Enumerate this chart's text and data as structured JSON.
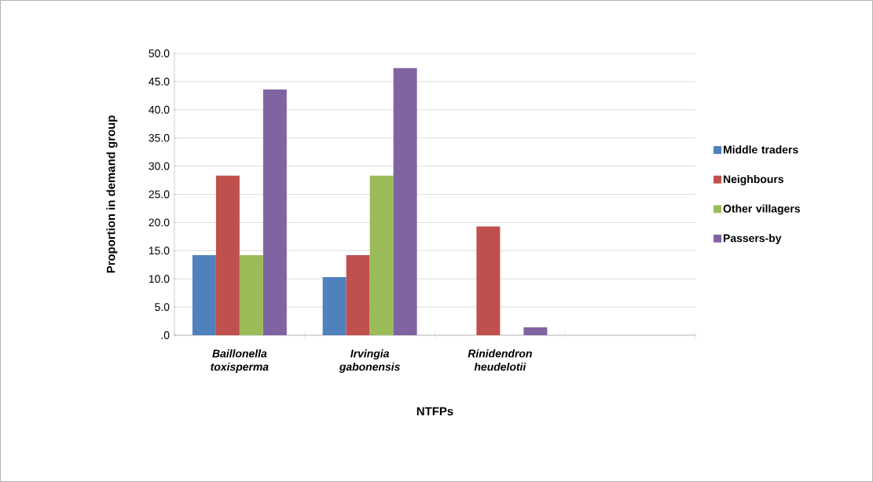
{
  "chart_data": {
    "type": "bar",
    "xlabel": "NTFPs",
    "ylabel": "Proportion in demand group",
    "categories": [
      "Baillonella toxisperma",
      "Irvingia gabonensis",
      "Rinidendron heudelotii",
      null
    ],
    "series": [
      {
        "name": "Middle traders",
        "color": "#4f81bd",
        "values": [
          14.2,
          10.3,
          0,
          null
        ]
      },
      {
        "name": "Neighbours",
        "color": "#c0504d",
        "values": [
          28.3,
          14.2,
          19.3,
          null
        ]
      },
      {
        "name": "Other villagers",
        "color": "#9bbb59",
        "values": [
          14.2,
          28.3,
          0,
          null
        ]
      },
      {
        "name": "Passers-by",
        "color": "#8064a2",
        "values": [
          43.6,
          47.4,
          1.4,
          null
        ]
      }
    ],
    "ylim": [
      0,
      50
    ],
    "yticks": [
      {
        "value": 0,
        "label": ".0"
      },
      {
        "value": 5,
        "label": "5.0"
      },
      {
        "value": 10,
        "label": "10.0"
      },
      {
        "value": 15,
        "label": "15.0"
      },
      {
        "value": 20,
        "label": "20.0"
      },
      {
        "value": 25,
        "label": "25.0"
      },
      {
        "value": 30,
        "label": "30.0"
      },
      {
        "value": 35,
        "label": "35.0"
      },
      {
        "value": 40,
        "label": "40.0"
      },
      {
        "value": 45,
        "label": "45.0"
      },
      {
        "value": 50,
        "label": "50.0"
      }
    ],
    "grid": "y",
    "legend": "right"
  }
}
